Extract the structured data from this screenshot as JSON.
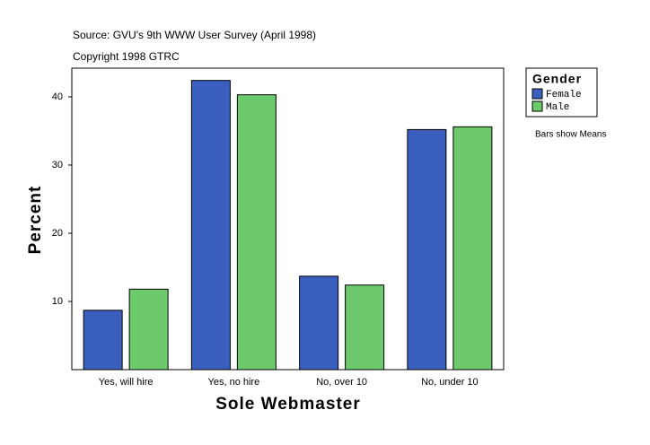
{
  "chart_data": {
    "type": "bar",
    "title": "Source: GVU's 9th WWW User Survey (April 1998)",
    "subtitle": "Copyright 1998 GTRC",
    "x_label": "Sole Webmaster",
    "y_label": "Percent",
    "annotation": "Bars show Means",
    "legend_title": "Gender",
    "categories": [
      "Yes, will hire",
      "Yes, no hire",
      "No, over 10",
      "No, under 10"
    ],
    "series": [
      {
        "name": "Female",
        "color": "#3a5fbf",
        "values": [
          8.7,
          42.4,
          13.7,
          35.2
        ]
      },
      {
        "name": "Male",
        "color": "#6cc96c",
        "values": [
          11.8,
          40.3,
          12.4,
          35.6
        ]
      }
    ],
    "ylim": [
      0,
      44.2
    ],
    "yticks": [
      10,
      20,
      30,
      40
    ],
    "grid": false
  }
}
